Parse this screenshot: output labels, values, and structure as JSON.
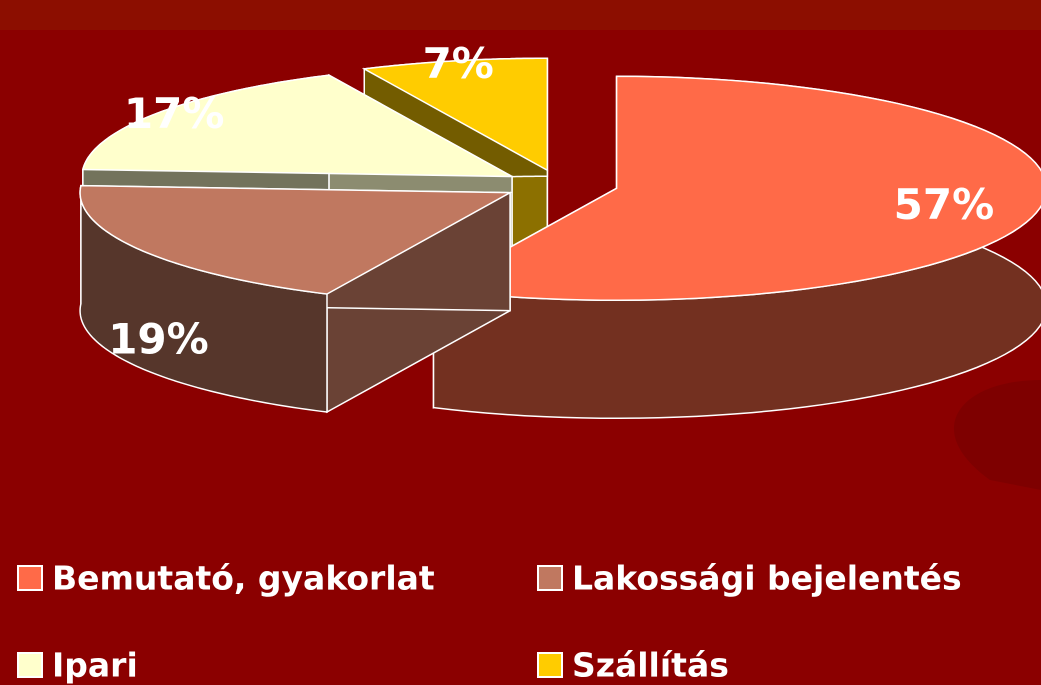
{
  "chart_data": {
    "type": "pie",
    "categories": [
      "Bemutató, gyakorlat",
      "Lakossági bejelentés",
      "Ipari",
      "Szállítás"
    ],
    "values": [
      57,
      19,
      17,
      7
    ],
    "value_labels": [
      "57%",
      "19%",
      "17%",
      "7%"
    ],
    "colors": [
      "#ff6a48",
      "#c07860",
      "#ffffcc",
      "#ffcc00"
    ],
    "legend": "bottom"
  }
}
